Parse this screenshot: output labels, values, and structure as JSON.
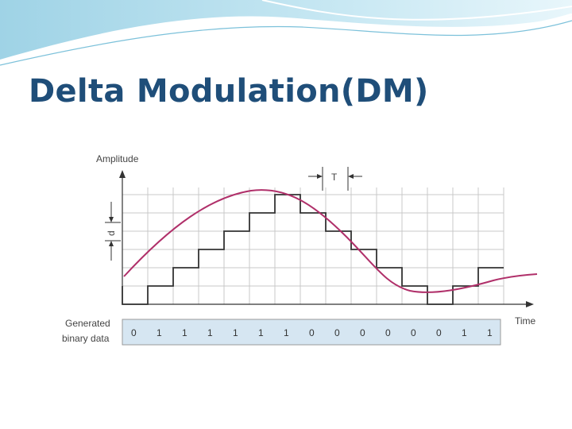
{
  "slide": {
    "title": "Delta Modulation(DM)"
  },
  "diagram": {
    "y_axis_label": "Amplitude",
    "x_axis_label": "Time",
    "period_label": "T",
    "step_label": "d",
    "row_label_line1": "Generated",
    "row_label_line2": "binary data",
    "bits": [
      "0",
      "1",
      "1",
      "1",
      "1",
      "1",
      "1",
      "0",
      "0",
      "0",
      "0",
      "0",
      "0",
      "1",
      "1"
    ]
  },
  "colors": {
    "title": "#1f4e79",
    "signal": "#b0306a",
    "staircase": "#333333",
    "grid": "#c9c9c9",
    "bit_row": "#d6e6f2"
  }
}
